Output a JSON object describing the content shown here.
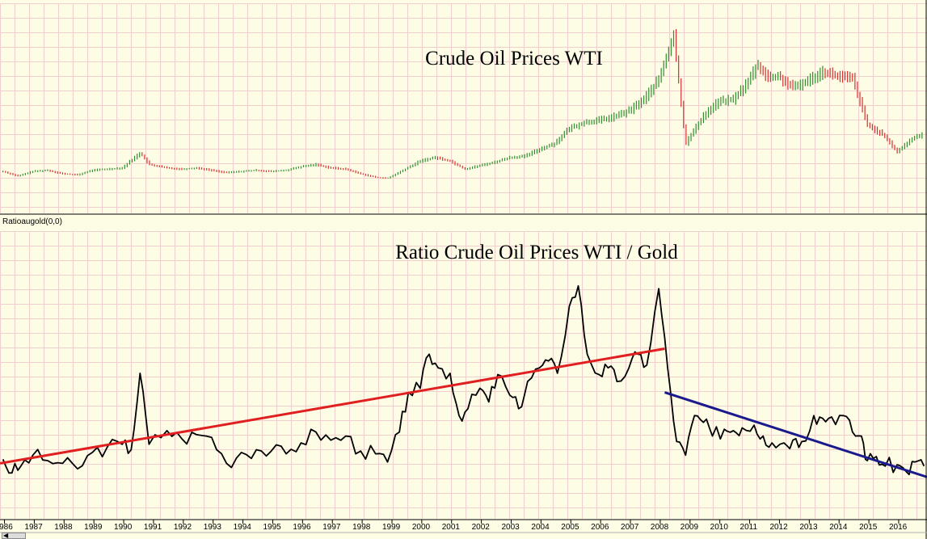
{
  "chart_data": [
    {
      "type": "bar",
      "subtype": "ohlc",
      "title": "Crude Oil Prices WTI",
      "xlabel": "",
      "ylabel": "",
      "x_range": [
        1985.9,
        2017.0
      ],
      "ylim": [
        0,
        160
      ],
      "grid": true,
      "up_color": "#2f8f2f",
      "down_color": "#d63030",
      "x": [
        1986.0,
        1986.5,
        1987.0,
        1987.5,
        1988.0,
        1988.5,
        1989.0,
        1989.5,
        1990.0,
        1990.6,
        1990.9,
        1991.5,
        1992.0,
        1992.5,
        1993.0,
        1993.5,
        1994.0,
        1994.5,
        1995.0,
        1995.5,
        1996.0,
        1996.5,
        1997.0,
        1997.5,
        1998.0,
        1998.5,
        1998.9,
        1999.5,
        2000.0,
        2000.5,
        2001.0,
        2001.5,
        2002.0,
        2002.5,
        2003.0,
        2003.5,
        2004.0,
        2004.5,
        2005.0,
        2005.5,
        2006.0,
        2006.5,
        2007.0,
        2007.5,
        2008.0,
        2008.5,
        2008.9,
        2009.5,
        2010.0,
        2010.5,
        2011.0,
        2011.3,
        2011.7,
        2012.0,
        2012.5,
        2013.0,
        2013.5,
        2014.0,
        2014.5,
        2015.0,
        2015.5,
        2016.0,
        2016.5,
        2016.9
      ],
      "values": [
        18,
        14,
        18,
        19,
        16,
        15,
        19,
        20,
        21,
        34,
        24,
        21,
        20,
        21,
        19,
        17,
        18,
        19,
        18,
        19,
        22,
        24,
        21,
        20,
        16,
        13,
        12,
        20,
        27,
        30,
        27,
        20,
        23,
        26,
        30,
        31,
        37,
        42,
        55,
        60,
        62,
        65,
        70,
        80,
        97,
        135,
        42,
        66,
        78,
        80,
        95,
        110,
        98,
        100,
        90,
        96,
        104,
        100,
        98,
        58,
        50,
        35,
        46,
        51
      ]
    },
    {
      "type": "line",
      "legend": "Ratioaugold(0,0)",
      "title": "Ratio Crude Oil Prices WTI / Gold",
      "xlabel": "",
      "ylabel": "",
      "x_range": [
        1985.9,
        2017.0
      ],
      "ylim": [
        0.01,
        0.2
      ],
      "grid": true,
      "tick_labels": [
        "1986",
        "1987",
        "1988",
        "1989",
        "1990",
        "1991",
        "1992",
        "1993",
        "1994",
        "1995",
        "1996",
        "1997",
        "1998",
        "1999",
        "2000",
        "2001",
        "2002",
        "2003",
        "2004",
        "2005",
        "2006",
        "2007",
        "2008",
        "2009",
        "2010",
        "2011",
        "2012",
        "2013",
        "2014",
        "2015",
        "2016"
      ],
      "x": [
        1986.0,
        1986.3,
        1986.6,
        1987.0,
        1987.5,
        1988.0,
        1988.5,
        1989.0,
        1989.5,
        1990.0,
        1990.3,
        1990.6,
        1990.9,
        1991.5,
        1992.0,
        1992.5,
        1993.0,
        1993.5,
        1994.0,
        1994.5,
        1995.0,
        1995.5,
        1996.0,
        1996.5,
        1997.0,
        1997.5,
        1998.0,
        1998.5,
        1998.9,
        1999.3,
        1999.6,
        2000.0,
        2000.3,
        2000.6,
        2001.0,
        2001.3,
        2001.6,
        2002.0,
        2002.3,
        2002.6,
        2003.0,
        2003.3,
        2003.6,
        2004.0,
        2004.3,
        2004.6,
        2005.0,
        2005.3,
        2005.6,
        2006.0,
        2006.3,
        2006.6,
        2007.0,
        2007.3,
        2007.6,
        2008.0,
        2008.3,
        2008.6,
        2008.9,
        2009.2,
        2009.5,
        2009.8,
        2010.2,
        2010.5,
        2010.8,
        2011.2,
        2011.5,
        2011.8,
        2012.2,
        2012.5,
        2012.8,
        2013.2,
        2013.5,
        2013.8,
        2014.2,
        2014.5,
        2014.8,
        2015.0,
        2015.3,
        2015.6,
        2016.0,
        2016.3,
        2016.6,
        2016.9
      ],
      "values": [
        0.053,
        0.043,
        0.048,
        0.056,
        0.052,
        0.05,
        0.046,
        0.058,
        0.062,
        0.064,
        0.06,
        0.116,
        0.064,
        0.074,
        0.068,
        0.071,
        0.069,
        0.05,
        0.058,
        0.06,
        0.059,
        0.057,
        0.065,
        0.073,
        0.067,
        0.07,
        0.059,
        0.057,
        0.051,
        0.073,
        0.102,
        0.105,
        0.13,
        0.12,
        0.116,
        0.085,
        0.09,
        0.105,
        0.095,
        0.115,
        0.1,
        0.09,
        0.11,
        0.12,
        0.125,
        0.116,
        0.165,
        0.18,
        0.13,
        0.115,
        0.12,
        0.11,
        0.12,
        0.13,
        0.122,
        0.178,
        0.12,
        0.066,
        0.056,
        0.085,
        0.08,
        0.07,
        0.075,
        0.074,
        0.076,
        0.078,
        0.07,
        0.065,
        0.065,
        0.067,
        0.066,
        0.085,
        0.083,
        0.084,
        0.085,
        0.073,
        0.07,
        0.052,
        0.055,
        0.048,
        0.049,
        0.044,
        0.051,
        0.048
      ],
      "trendlines": [
        {
          "color": "#e02020",
          "x": [
            1985.9,
            2008.2
          ],
          "values": [
            0.05,
            0.134
          ]
        },
        {
          "color": "#1a1a8c",
          "x": [
            2008.2,
            2017.0
          ],
          "values": [
            0.102,
            0.04
          ]
        }
      ]
    }
  ]
}
